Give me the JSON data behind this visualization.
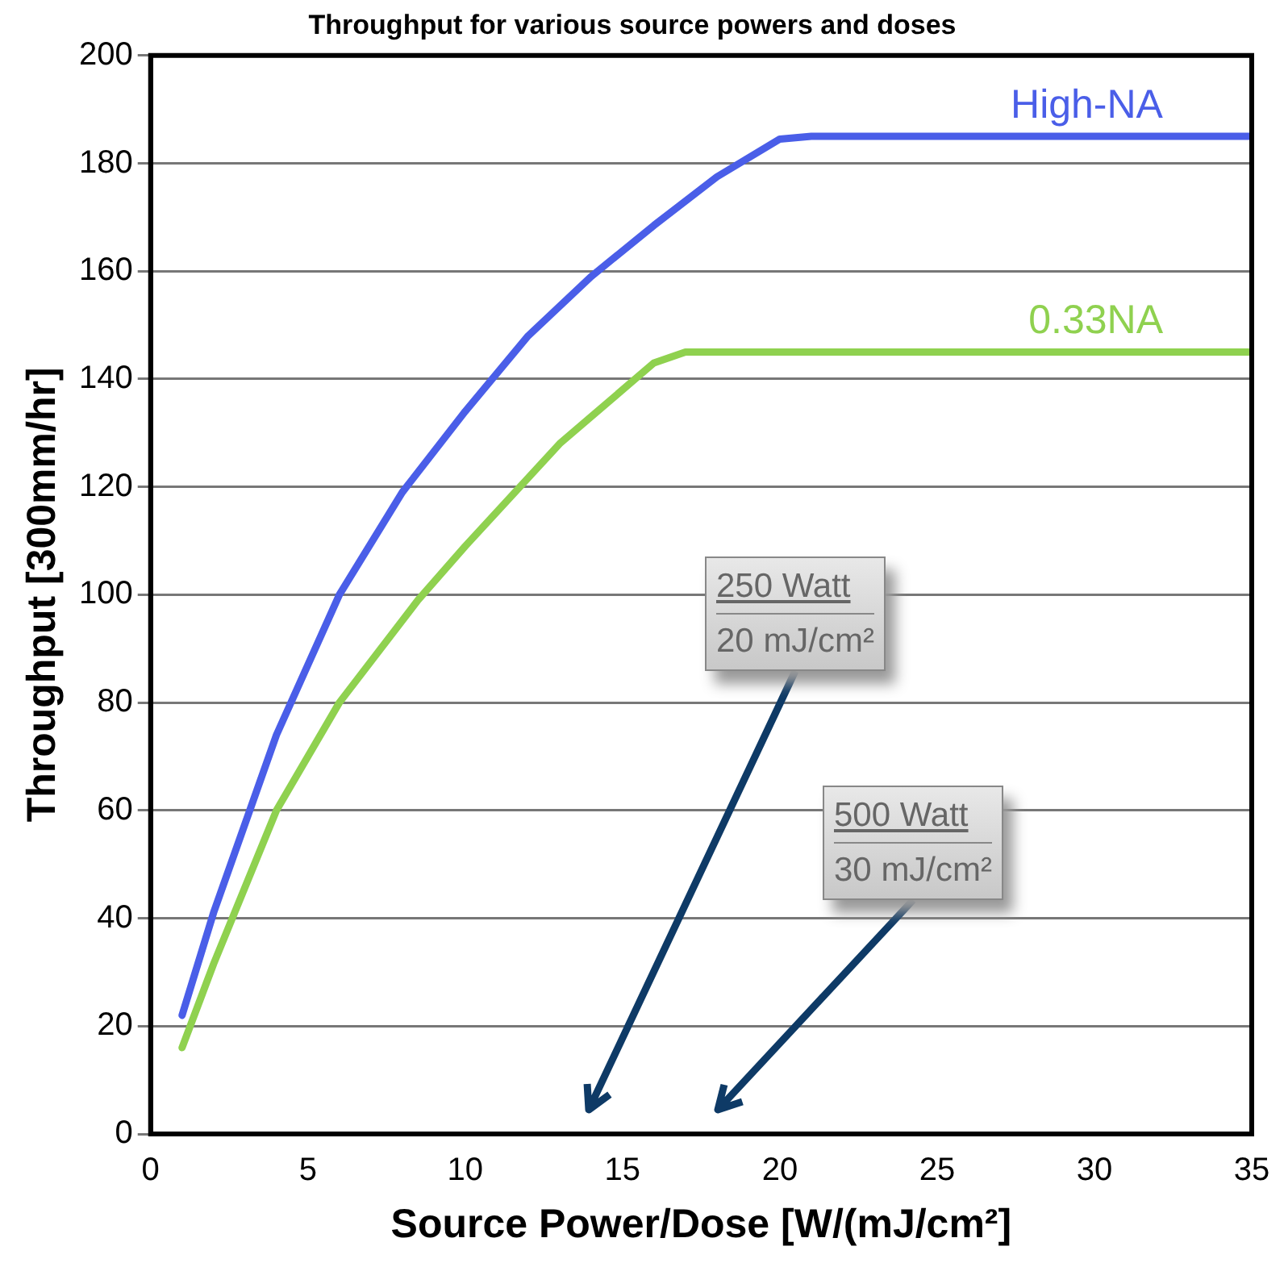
{
  "chart_data": {
    "type": "line",
    "title": "Throughput for various source powers and doses",
    "xlabel": "Source Power/Dose [W/(mJ/cm²]",
    "ylabel": "Throughput [300mm/hr]",
    "series": [
      {
        "name": "High-NA",
        "color": "#4a5ee8",
        "x": [
          1,
          2,
          4,
          6,
          8,
          10,
          12,
          14,
          16,
          18,
          20,
          21,
          35
        ],
        "values": [
          22,
          41,
          74,
          100,
          119,
          134,
          148,
          159,
          168.5,
          177.5,
          184.5,
          185,
          185
        ]
      },
      {
        "name": "0.33NA",
        "color": "#8fd14f",
        "x": [
          1,
          2,
          4,
          6,
          8.5,
          10,
          13,
          16,
          17,
          35
        ],
        "values": [
          16,
          31.5,
          60,
          80,
          99,
          109,
          128,
          143,
          145,
          145
        ]
      }
    ],
    "xlim": [
      0,
      35
    ],
    "xticks": [
      0,
      5,
      10,
      15,
      20,
      25,
      30,
      35
    ],
    "ylim": [
      0,
      200
    ],
    "yticks": [
      0,
      20,
      40,
      60,
      80,
      100,
      120,
      140,
      160,
      180,
      200
    ],
    "grid": "y",
    "legend": false,
    "marker": "none",
    "line_style": "solid",
    "annotations": [
      "250 Watt\n20 mJ/cm²",
      "500 Watt\n30 mJ/cm²"
    ]
  }
}
